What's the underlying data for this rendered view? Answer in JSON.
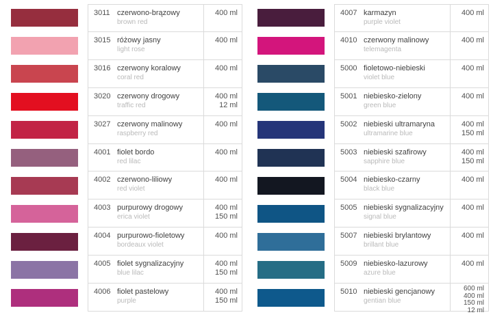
{
  "page": {
    "background": "#ffffff",
    "grid_line_color": "#dadada"
  },
  "color_table": {
    "columns": [
      {
        "rows": [
          {
            "code": "3011",
            "name_pl": "czerwono-brązowy",
            "name_en": "brown red",
            "volumes": [
              "400 ml"
            ],
            "swatch_color": "#962e3e"
          },
          {
            "code": "3015",
            "name_pl": "różowy jasny",
            "name_en": "light rose",
            "volumes": [
              "400 ml"
            ],
            "swatch_color": "#f2a2b0"
          },
          {
            "code": "3016",
            "name_pl": "czerwony koralowy",
            "name_en": "coral red",
            "volumes": [
              "400 ml"
            ],
            "swatch_color": "#c9454f"
          },
          {
            "code": "3020",
            "name_pl": "czerwony drogowy",
            "name_en": "traffic red",
            "volumes": [
              "400 ml",
              "12 ml"
            ],
            "swatch_color": "#e30f20"
          },
          {
            "code": "3027",
            "name_pl": "czerwony malinowy",
            "name_en": "raspberry red",
            "volumes": [
              "400 ml"
            ],
            "swatch_color": "#c22345"
          },
          {
            "code": "4001",
            "name_pl": "fiolet bordo",
            "name_en": "red lilac",
            "volumes": [
              "400 ml"
            ],
            "swatch_color": "#95607e"
          },
          {
            "code": "4002",
            "name_pl": "czerwono-liliowy",
            "name_en": "red violet",
            "volumes": [
              "400 ml"
            ],
            "swatch_color": "#a73a53"
          },
          {
            "code": "4003",
            "name_pl": "purpurowy drogowy",
            "name_en": "erica violet",
            "volumes": [
              "400 ml",
              "150 ml"
            ],
            "swatch_color": "#d5639a"
          },
          {
            "code": "4004",
            "name_pl": "purpurowo-fioletowy",
            "name_en": "bordeaux violet",
            "volumes": [
              "400 ml"
            ],
            "swatch_color": "#6b2040"
          },
          {
            "code": "4005",
            "name_pl": "fiolet sygnalizacyjny",
            "name_en": "blue lilac",
            "volumes": [
              "400 ml",
              "150 ml"
            ],
            "swatch_color": "#8b74a5"
          },
          {
            "code": "4006",
            "name_pl": "fiolet pastelowy",
            "name_en": "purple",
            "volumes": [
              "400 ml",
              "150 ml"
            ],
            "swatch_color": "#ae2f7d"
          }
        ]
      },
      {
        "rows": [
          {
            "code": "4007",
            "name_pl": "karmazyn",
            "name_en": "purple violet",
            "volumes": [
              "400 ml"
            ],
            "swatch_color": "#491d3d"
          },
          {
            "code": "4010",
            "name_pl": "czerwony malinowy",
            "name_en": "telemagenta",
            "volumes": [
              "400 ml"
            ],
            "swatch_color": "#d3157c"
          },
          {
            "code": "5000",
            "name_pl": "fioletowo-niebieski",
            "name_en": "violet blue",
            "volumes": [
              "400 ml"
            ],
            "swatch_color": "#2a4a66"
          },
          {
            "code": "5001",
            "name_pl": "niebiesko-zielony",
            "name_en": "green blue",
            "volumes": [
              "400 ml"
            ],
            "swatch_color": "#14587a"
          },
          {
            "code": "5002",
            "name_pl": "niebieski ultramaryna",
            "name_en": "ultramarine blue",
            "volumes": [
              "400 ml",
              "150 ml"
            ],
            "swatch_color": "#253579"
          },
          {
            "code": "5003",
            "name_pl": "niebieski szafirowy",
            "name_en": "sapphire blue",
            "volumes": [
              "400 ml",
              "150 ml"
            ],
            "swatch_color": "#203354"
          },
          {
            "code": "5004",
            "name_pl": "niebiesko-czarny",
            "name_en": "black blue",
            "volumes": [
              "400 ml"
            ],
            "swatch_color": "#131721"
          },
          {
            "code": "5005",
            "name_pl": "niebieski sygnalizacyjny",
            "name_en": "signal blue",
            "volumes": [
              "400 ml"
            ],
            "swatch_color": "#0f5585"
          },
          {
            "code": "5007",
            "name_pl": "niebieski brylantowy",
            "name_en": "brillant blue",
            "volumes": [
              "400 ml"
            ],
            "swatch_color": "#2f6e99"
          },
          {
            "code": "5009",
            "name_pl": "niebiesko-lazurowy",
            "name_en": "azure blue",
            "volumes": [
              "400 ml"
            ],
            "swatch_color": "#256d85"
          },
          {
            "code": "5010",
            "name_pl": "niebieski gencjanowy",
            "name_en": "gentian blue",
            "volumes": [
              "600 ml",
              "400 ml",
              "150 ml",
              "12 ml"
            ],
            "swatch_color": "#0e598c"
          }
        ]
      }
    ]
  }
}
